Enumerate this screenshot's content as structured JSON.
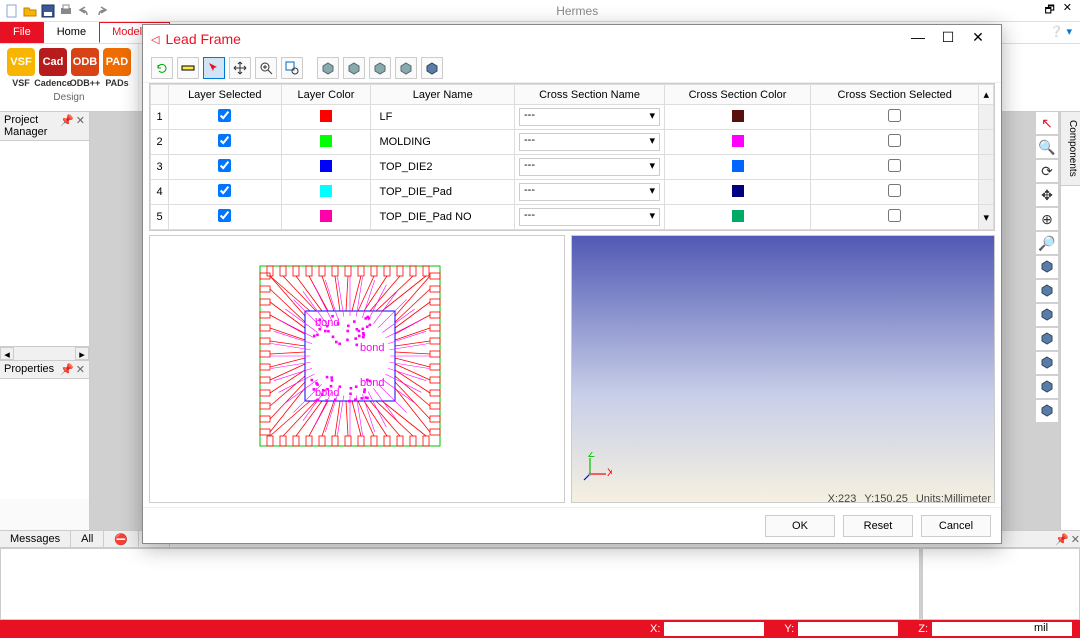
{
  "app": {
    "title": "Hermes"
  },
  "ribbon": {
    "tabs": {
      "file": "File",
      "home": "Home",
      "modeling": "Modeling"
    },
    "design_group": "Design",
    "icons": [
      {
        "label": "VSF",
        "bg": "#f7b500",
        "fg": "#ffffff"
      },
      {
        "label": "Cadence",
        "bg": "#b71c1c",
        "fg": "#ffffff"
      },
      {
        "label": "ODB++",
        "bg": "#d84315",
        "fg": "#ffffff"
      },
      {
        "label": "PADs",
        "bg": "#ef6c00",
        "fg": "#ffffff"
      }
    ]
  },
  "panels": {
    "project_manager": "Project Manager",
    "properties": "Properties",
    "components": "Components"
  },
  "messages": {
    "tab1": "Messages",
    "tab2": "All"
  },
  "status": {
    "x_label": "X:",
    "y_label": "Y:",
    "z_label": "Z:",
    "unit": "mil"
  },
  "dialog": {
    "title": "Lead Frame",
    "columns": [
      "",
      "Layer Selected",
      "Layer Color",
      "Layer Name",
      "Cross Section Name",
      "Cross Section Color",
      "Cross Section Selected"
    ],
    "rows": [
      {
        "idx": "1",
        "sel": true,
        "lcolor": "#ff0000",
        "name": "LF",
        "csname": "---",
        "cscolor": "#5a0f0f",
        "cssel": false
      },
      {
        "idx": "2",
        "sel": true,
        "lcolor": "#00ff00",
        "name": "MOLDING",
        "csname": "---",
        "cscolor": "#ff00ff",
        "cssel": false
      },
      {
        "idx": "3",
        "sel": true,
        "lcolor": "#0000ff",
        "name": "TOP_DIE2",
        "csname": "---",
        "cscolor": "#0066ff",
        "cssel": false
      },
      {
        "idx": "4",
        "sel": true,
        "lcolor": "#00ffff",
        "name": "TOP_DIE_Pad",
        "csname": "---",
        "cscolor": "#000080",
        "cssel": false
      },
      {
        "idx": "5",
        "sel": true,
        "lcolor": "#ff00aa",
        "name": "TOP_DIE_Pad NO",
        "csname": "---",
        "cscolor": "#00aa66",
        "cssel": false
      }
    ],
    "buttons": {
      "ok": "OK",
      "reset": "Reset",
      "cancel": "Cancel"
    },
    "status": {
      "x": "X:223",
      "y": "Y:150.25",
      "units": "Units:Millimeter"
    }
  },
  "right_tools_colors": [
    "#e81123",
    "#333333",
    "#333333",
    "#333333",
    "#333333",
    "#333333",
    "#5a7ca8",
    "#5a7ca8",
    "#5a7ca8",
    "#5a7ca8",
    "#5a7ca8",
    "#5a7ca8",
    "#5a7ca8"
  ],
  "chip": {
    "outer_color": "#00c000",
    "lead_color": "#ff0000",
    "die_color": "#0000ff",
    "bond_color": "#ff00ff"
  }
}
